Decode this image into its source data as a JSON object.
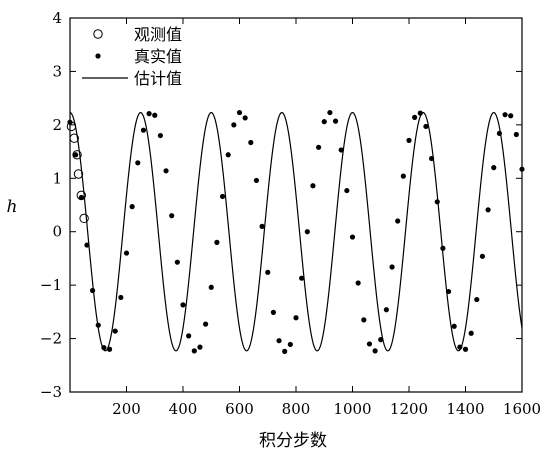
{
  "chart_data": {
    "type": "line",
    "title": "",
    "xlabel": "积分步数",
    "ylabel": "h",
    "xlim": [
      0,
      1600
    ],
    "ylim": [
      -3,
      4
    ],
    "xticks": [
      200,
      400,
      600,
      800,
      1000,
      1200,
      1400,
      1600
    ],
    "xtick_labels": [
      "200",
      "400",
      "600",
      "800",
      "1000",
      "1200",
      "1400",
      "1600"
    ],
    "yticks": [
      -3,
      -2,
      -1,
      0,
      1,
      2,
      3,
      4
    ],
    "ytick_labels": [
      "−3",
      "−2",
      "−1",
      "0",
      "1",
      "2",
      "3",
      "4"
    ],
    "grid": false,
    "legend_position": "top-left",
    "legend": [
      {
        "label": "观测值",
        "marker": "open-circle"
      },
      {
        "label": "真实值",
        "marker": "filled-dot"
      },
      {
        "label": "估计值",
        "marker": "line"
      }
    ],
    "series": [
      {
        "name": "观测值",
        "style": "open-circle",
        "x": [
          5,
          15,
          25,
          30,
          40,
          50
        ],
        "y": [
          1.97,
          1.75,
          1.44,
          1.08,
          0.68,
          0.25
        ]
      },
      {
        "name": "真实值",
        "style": "filled-dot",
        "x": [
          0,
          20,
          40,
          60,
          80,
          100,
          120,
          140,
          160,
          180,
          200,
          220,
          240,
          260,
          280,
          300,
          320,
          340,
          360,
          380,
          400,
          420,
          440,
          460,
          480,
          500,
          520,
          540,
          560,
          580,
          600,
          620,
          640,
          660,
          680,
          700,
          720,
          740,
          760,
          780,
          800,
          820,
          840,
          860,
          880,
          900,
          920,
          940,
          960,
          980,
          1000,
          1020,
          1040,
          1060,
          1080,
          1100,
          1120,
          1140,
          1160,
          1180,
          1200,
          1220,
          1240,
          1260,
          1280,
          1300,
          1320,
          1340,
          1360,
          1380,
          1400,
          1420,
          1440,
          1460,
          1480,
          1500,
          1520,
          1540,
          1560,
          1580,
          1600
        ],
        "y": [
          2.05,
          1.44,
          0.64,
          -0.25,
          -1.1,
          -1.75,
          -2.17,
          -2.2,
          -1.86,
          -1.23,
          -0.4,
          0.47,
          1.29,
          1.9,
          2.21,
          2.18,
          1.8,
          1.14,
          0.3,
          -0.57,
          -1.37,
          -1.95,
          -2.23,
          -2.16,
          -1.73,
          -1.04,
          -0.2,
          0.66,
          1.44,
          2.0,
          2.23,
          2.13,
          1.67,
          0.96,
          0.1,
          -0.76,
          -1.51,
          -2.04,
          -2.24,
          -2.11,
          -1.61,
          -0.87,
          0.0,
          0.86,
          1.58,
          2.06,
          2.23,
          2.07,
          1.53,
          0.77,
          -0.1,
          -0.96,
          -1.65,
          -2.1,
          -2.23,
          -2.02,
          -1.46,
          -0.66,
          0.2,
          1.04,
          1.71,
          2.14,
          2.22,
          1.97,
          1.37,
          0.56,
          -0.31,
          -1.12,
          -1.77,
          -2.16,
          -2.2,
          -1.9,
          -1.27,
          -0.46,
          0.41,
          1.2,
          1.84,
          2.19,
          2.17,
          1.82,
          1.17
        ]
      },
      {
        "name": "估计值",
        "style": "line",
        "amplitude": 2.23,
        "period": 250,
        "phase_peak_x": 250,
        "start_x": 0,
        "end_x": 1600
      }
    ]
  }
}
